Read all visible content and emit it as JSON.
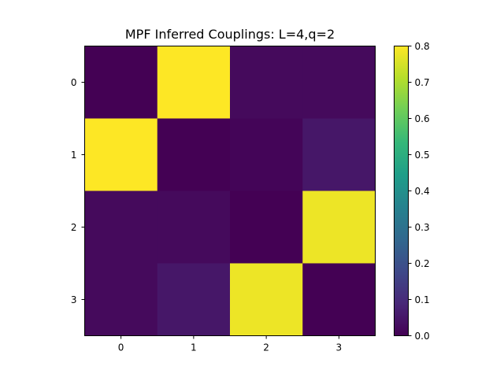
{
  "chart_data": {
    "type": "heatmap",
    "title": "MPF Inferred Couplings: L=4,q=2",
    "xlabel": "",
    "ylabel": "",
    "x_ticks": [
      "0",
      "1",
      "2",
      "3"
    ],
    "y_ticks": [
      "0",
      "1",
      "2",
      "3"
    ],
    "matrix": [
      [
        0.0,
        0.8,
        0.02,
        0.02
      ],
      [
        0.8,
        0.0,
        0.01,
        0.05
      ],
      [
        0.02,
        0.02,
        0.0,
        0.78
      ],
      [
        0.02,
        0.05,
        0.78,
        0.0
      ]
    ],
    "colorbar": {
      "min": 0.0,
      "max": 0.8,
      "ticks": [
        "0.0",
        "0.1",
        "0.2",
        "0.3",
        "0.4",
        "0.5",
        "0.6",
        "0.7",
        "0.8"
      ],
      "colormap": "viridis"
    },
    "grid": false
  },
  "colors": {
    "viridis_stops": [
      "#440154",
      "#482878",
      "#3e4989",
      "#31688e",
      "#26828e",
      "#1f9e89",
      "#35b779",
      "#6ece58",
      "#b5de2b",
      "#fde725"
    ]
  }
}
